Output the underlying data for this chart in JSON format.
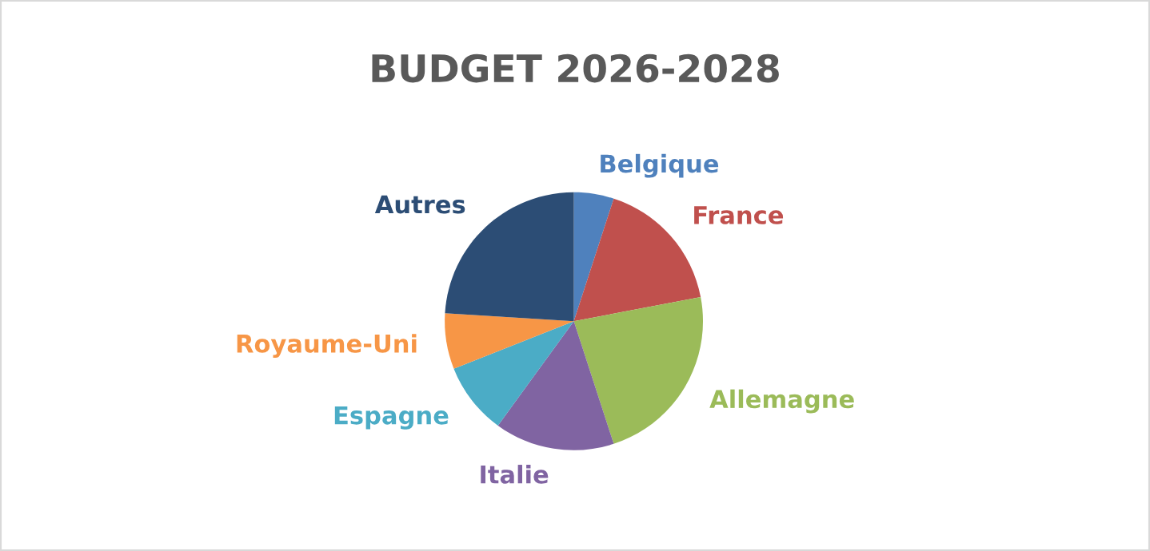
{
  "chart_data": {
    "type": "pie",
    "title": "BUDGET 2026-2028",
    "categories": [
      "Belgique",
      "France",
      "Allemagne",
      "Italie",
      "Espagne",
      "Royaume-Uni",
      "Autres"
    ],
    "values": [
      5,
      17,
      23,
      15,
      9,
      7,
      24
    ],
    "colors": [
      "#4f81bd",
      "#c0504d",
      "#9bbb59",
      "#8064a2",
      "#4bacc6",
      "#f79646",
      "#2c4d75"
    ],
    "legend": false
  }
}
